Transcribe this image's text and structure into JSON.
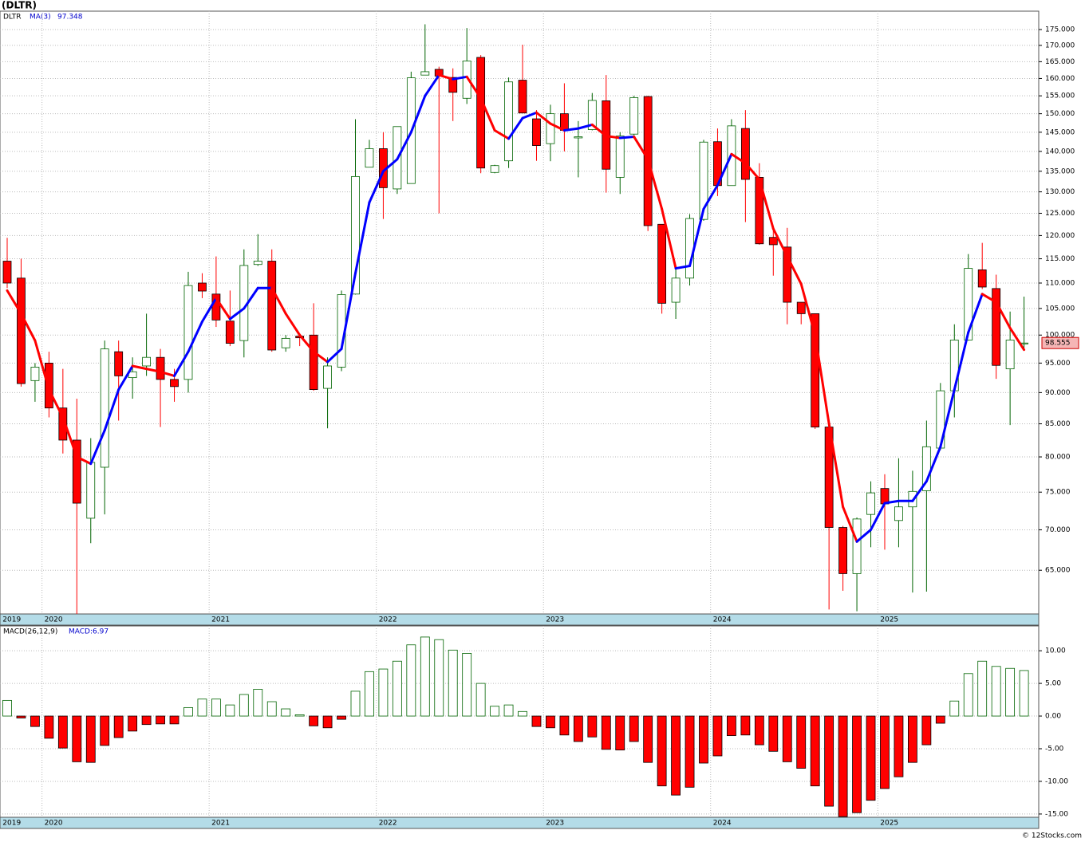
{
  "chart_data": [
    {
      "type": "candlestick",
      "title": "(DLTR)",
      "symbol": "DLTR",
      "categories": [
        "2019",
        null,
        null,
        "2020",
        null,
        null,
        null,
        null,
        null,
        null,
        null,
        null,
        null,
        null,
        null,
        "2021",
        null,
        null,
        null,
        null,
        null,
        null,
        null,
        null,
        null,
        null,
        null,
        "2022",
        null,
        null,
        null,
        null,
        null,
        null,
        null,
        null,
        null,
        null,
        null,
        "2023",
        null,
        null,
        null,
        null,
        null,
        null,
        null,
        null,
        null,
        null,
        null,
        "2024",
        null,
        null,
        null,
        null,
        null,
        null,
        null,
        null,
        null,
        null,
        null,
        "2025",
        null,
        null,
        null,
        null,
        null,
        null,
        null,
        null,
        null,
        null
      ],
      "open": [
        114.5,
        111,
        92,
        95,
        87.5,
        82.5,
        71.5,
        78.5,
        97,
        92.5,
        94.5,
        96,
        92.2,
        92.2,
        110,
        107.8,
        102.6,
        99,
        113.8,
        114.5,
        97.7,
        99.8,
        100,
        90.7,
        94.3,
        107.8,
        136,
        140.7,
        130.7,
        132,
        161,
        162.7,
        160.3,
        154.3,
        166.3,
        134.7,
        137.6,
        159.5,
        148.6,
        142,
        150,
        143.5,
        145.7,
        153.6,
        133.5,
        144.5,
        154.8,
        122.5,
        106.2,
        111,
        123.6,
        142.5,
        131.5,
        146,
        133.5,
        119.6,
        117.5,
        106.2,
        104,
        84.5,
        70.3,
        64.6,
        72,
        75.5,
        71.2,
        73,
        75.2,
        81.3,
        90.3,
        99.1,
        112.7,
        108.9,
        94,
        98.4
      ],
      "high": [
        119.5,
        115,
        95,
        97,
        94,
        89,
        82.8,
        99,
        99,
        96,
        104,
        97.5,
        94,
        112.3,
        112,
        115.5,
        108.5,
        117,
        120.3,
        117,
        100,
        100.2,
        106,
        96,
        108.5,
        148.5,
        143,
        145,
        146.5,
        162,
        176.7,
        163.5,
        163,
        175.5,
        167,
        136.6,
        160.3,
        170.2,
        151,
        152.5,
        158.6,
        148,
        155.8,
        161,
        145,
        155,
        155,
        122.5,
        113,
        124.8,
        143,
        146,
        148.5,
        151,
        137,
        122,
        121.7,
        106.2,
        104,
        84.5,
        70.5,
        71.6,
        76.5,
        77.5,
        79.8,
        78,
        85.5,
        91.6,
        102,
        116,
        118.4,
        111.7,
        104.4,
        107.3
      ],
      "low": [
        109,
        91,
        88.5,
        86,
        80.5,
        60,
        68.3,
        72,
        85.5,
        89,
        92.8,
        84.5,
        88.5,
        90,
        107,
        101.5,
        98,
        96,
        113.5,
        97,
        97,
        98,
        90.3,
        84.3,
        93.6,
        107.7,
        136,
        123.7,
        129.5,
        132,
        161,
        125,
        148,
        152.7,
        134.5,
        134.5,
        135.8,
        150.2,
        137.6,
        137.5,
        140,
        133.5,
        145.5,
        129.8,
        129.5,
        144.2,
        121,
        104,
        103,
        109.5,
        123.3,
        129,
        131.5,
        123,
        118,
        111.5,
        102,
        102,
        84.2,
        60.5,
        62.6,
        60.3,
        67.8,
        67.5,
        67.8,
        62.4,
        62.5,
        81,
        86,
        99,
        108.8,
        92.3,
        84.8,
        97.4
      ],
      "close": [
        110,
        91.5,
        94.3,
        87.5,
        82.5,
        73.5,
        79.2,
        97.5,
        92.8,
        93.5,
        96,
        92.2,
        91,
        109.5,
        108.4,
        102.8,
        98.5,
        113.6,
        114.5,
        97.3,
        99.4,
        99.5,
        90.5,
        94.5,
        107.7,
        133.7,
        140.7,
        131,
        146.5,
        160.2,
        162,
        160.7,
        156,
        165.2,
        135.8,
        136.4,
        159,
        150.2,
        141.5,
        150,
        145.5,
        143.8,
        153.7,
        135.5,
        144,
        154.5,
        122.2,
        106,
        111,
        123.8,
        142.4,
        131.5,
        146.7,
        133,
        118.2,
        118,
        106.2,
        104,
        84.5,
        70.3,
        64.6,
        71.4,
        74.9,
        73.4,
        73,
        75.1,
        81.5,
        90.3,
        99.1,
        113,
        109.2,
        94.6,
        99.1,
        98.555
      ],
      "up_color": "#006400",
      "down_color": "#ff0000",
      "ma": {
        "name": "MA(3)",
        "up_color": "#0000ff",
        "down_color": "#ff0000",
        "values": [
          108.5,
          104,
          99,
          90.5,
          86,
          80,
          79,
          84,
          90.5,
          94.5,
          94,
          93.5,
          92.8,
          97,
          102.5,
          107,
          103,
          105,
          109,
          109,
          104,
          100,
          97,
          95.2,
          97.5,
          112,
          127.5,
          135,
          138,
          145,
          155,
          161,
          159.8,
          160.5,
          154.3,
          145.5,
          143.3,
          148.8,
          150.3,
          147.3,
          145.5,
          146,
          147,
          144,
          143.5,
          143.8,
          138,
          126,
          113,
          113.5,
          126,
          131.6,
          139.3,
          137,
          133,
          121.5,
          115.5,
          109.8,
          100,
          85,
          73,
          68.5,
          70,
          73.5,
          73.8,
          73.8,
          76.5,
          81.5,
          90.5,
          100.5,
          107.8,
          106.2,
          101.3,
          97.348
        ]
      },
      "log_scale": true,
      "grid": true,
      "ylim": [
        60,
        181
      ],
      "yticks": [
        {
          "value": 65,
          "label": "65.000"
        },
        {
          "value": 70,
          "label": "70.000"
        },
        {
          "value": 75,
          "label": "75.000"
        },
        {
          "value": 80,
          "label": "80.000"
        },
        {
          "value": 85,
          "label": "85.000"
        },
        {
          "value": 90,
          "label": "90.000"
        },
        {
          "value": 95,
          "label": "95.000"
        },
        {
          "value": 100,
          "label": "100.000"
        },
        {
          "value": 105,
          "label": "105.000"
        },
        {
          "value": 110,
          "label": "110.000"
        },
        {
          "value": 115,
          "label": "115.000"
        },
        {
          "value": 120,
          "label": "120.000"
        },
        {
          "value": 125,
          "label": "125.000"
        },
        {
          "value": 130,
          "label": "130.000"
        },
        {
          "value": 135,
          "label": "135.000"
        },
        {
          "value": 140,
          "label": "140.000"
        },
        {
          "value": 145,
          "label": "145.000"
        },
        {
          "value": 150,
          "label": "150.000"
        },
        {
          "value": 155,
          "label": "155.000"
        },
        {
          "value": 160,
          "label": "160.000"
        },
        {
          "value": 165,
          "label": "165.000"
        },
        {
          "value": 170,
          "label": "170.000"
        },
        {
          "value": 175,
          "label": "175.000"
        }
      ],
      "source": "© 12Stocks.com"
    },
    {
      "type": "bar",
      "name": "MACD(26,12,9)",
      "readout": "MACD:6.97",
      "values": [
        2.4,
        -0.3,
        -1.6,
        -3.4,
        -4.9,
        -7.0,
        -7.1,
        -4.5,
        -3.3,
        -2.3,
        -1.3,
        -1.2,
        -1.2,
        1.3,
        2.6,
        2.6,
        1.7,
        3.3,
        4.1,
        2.2,
        1.1,
        0.2,
        -1.5,
        -1.8,
        -0.5,
        3.8,
        6.8,
        7.2,
        8.4,
        10.9,
        12.1,
        11.7,
        10.1,
        9.6,
        5.0,
        1.5,
        1.7,
        0.7,
        -1.6,
        -1.8,
        -2.9,
        -3.9,
        -3.2,
        -5.1,
        -5.2,
        -3.9,
        -7.1,
        -10.7,
        -12.1,
        -10.9,
        -7.2,
        -6.1,
        -3.0,
        -2.9,
        -4.4,
        -5.4,
        -7.0,
        -8.0,
        -10.7,
        -13.8,
        -15.4,
        -14.8,
        -12.9,
        -11.1,
        -9.3,
        -7.1,
        -4.4,
        -1.1,
        2.3,
        6.5,
        8.4,
        7.6,
        7.3,
        6.97
      ],
      "up_color": "#006400",
      "down_color": "#ff0000",
      "grid": true,
      "ylim": [
        -15.5,
        13.8
      ],
      "yticks": [
        {
          "value": -15,
          "label": "-15.00"
        },
        {
          "value": -10,
          "label": "-10.00"
        },
        {
          "value": -5,
          "label": "-5.00"
        },
        {
          "value": 0,
          "label": "0.00"
        },
        {
          "value": 5,
          "label": "5.00"
        },
        {
          "value": 10,
          "label": "10.00"
        }
      ]
    }
  ]
}
